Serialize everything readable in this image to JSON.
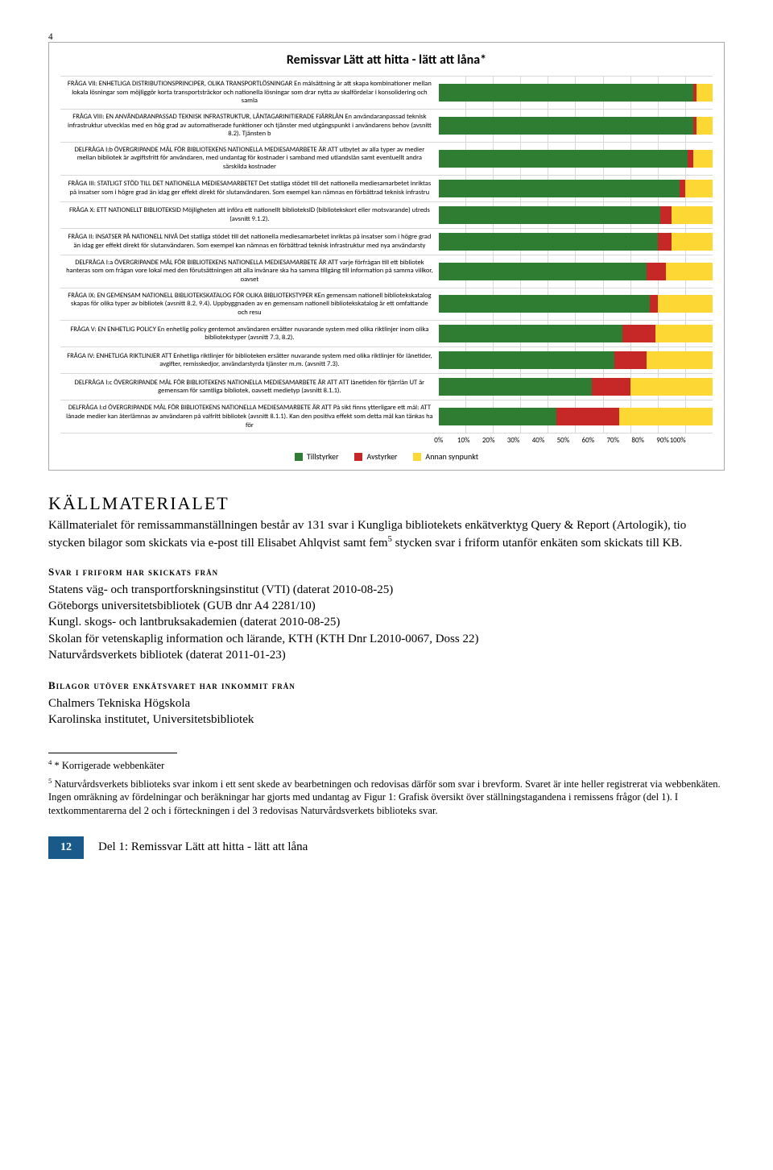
{
  "top_sup": "4",
  "chart": {
    "title": "Remissvar Lätt att hitta - lätt att låna*",
    "colors": {
      "tillstyrker": "#2e7d32",
      "avstyrker": "#c62828",
      "annan": "#fdd835"
    },
    "legend": [
      "Tillstyrker",
      "Avstyrker",
      "Annan synpunkt"
    ],
    "xticks": [
      "0%",
      "10%",
      "20%",
      "30%",
      "40%",
      "50%",
      "60%",
      "70%",
      "80%",
      "90%",
      "100%"
    ],
    "rows": [
      {
        "label": "FRÅGA VII: ENHETLIGA DISTRIBUTIONSPRINCIPER, OLIKA TRANSPORTLÖSNINGAR En målsättning är att skapa kombinationer mellan lokala lösningar som möjliggör korta transportsträckor och nationella lösningar som drar nytta av skalfördelar i konsolidering och samla",
        "segs": [
          93,
          1,
          6
        ]
      },
      {
        "label": "FRÅGA VIII: EN ANVÄNDARANPASSAD TEKNISK INFRASTRUKTUR, LÅNTAGARINITIERADE FJÄRRLÅN En användaranpassad teknisk infrastruktur utvecklas med en hög grad av automatiserade funktioner och tjänster med utgångspunkt i användarens behov (avsnitt 8.2). Tjänsten b",
        "segs": [
          93,
          1,
          6
        ]
      },
      {
        "label": "DELFRÅGA I:b ÖVERGRIPANDE MÅL FÖR BIBLIOTEKENS NATIONELLA MEDIESAMARBETE ÄR ATT utbytet av alla typer av medier mellan bibliotek är avgiftsfritt för användaren, med undantag för kostnader i samband med utlandslån samt eventuellt andra särskilda kostnader",
        "segs": [
          91,
          2,
          7
        ]
      },
      {
        "label": "FRÅGA III: STATLIGT STÖD TILL DET NATIONELLA MEDIESAMARBETET Det statliga stödet till det nationella mediesamarbetet inriktas på insatser som i högre grad än idag ger effekt direkt för slutanvändaren. Som exempel kan nämnas en förbättrad teknisk infrastru",
        "segs": [
          88,
          2,
          10
        ]
      },
      {
        "label": "FRÅGA X: ETT NATIONELLT BIBLIOTEKSID Möjligheten att införa ett nationellt biblioteksID (bibliotekskort eller motsvarande) utreds (avsnitt 9.1.2).",
        "segs": [
          81,
          4,
          15
        ]
      },
      {
        "label": "FRÅGA II: INSATSER PÅ NATIONELL NIVÅ Det statliga stödet till det nationella mediesamarbetet inriktas på insatser som i högre grad än idag ger effekt direkt för slutanvändaren. Som exempel kan nämnas en förbättrad teknisk infrastruktur med nya användarsty",
        "segs": [
          80,
          5,
          15
        ]
      },
      {
        "label": "DELFRÅGA I:a ÖVERGRIPANDE MÅL FÖR BIBLIOTEKENS NATIONELLA MEDIESAMARBETE ÄR  ATT varje förfrågan till ett bibliotek hanteras som om frågan vore lokal med den förutsättningen att alla invånare ska ha samma tillgång till information på samma villkor, oavset",
        "segs": [
          76,
          7,
          17
        ]
      },
      {
        "label": "FRÅGA IX: EN GEMENSAM NATIONELL BIBLIOTEKSKATALOG FÖR OLIKA BIBLIOTEKSTYPER KEn gemensam nationell bibliotekskatalog skapas för olika typer av bibliotek (avsnitt 8.2, 9.4). Uppbyggnaden av en gemensam nationell bibliotekskatalog är ett omfattande och resu",
        "segs": [
          77,
          3,
          20
        ]
      },
      {
        "label": "FRÅGA V: EN ENHETLIG POLICY En enhetlig policy gentemot användaren ersätter nuvarande system med olika riktlinjer inom olika bibliotekstyper (avsnitt 7.3, 8.2).",
        "segs": [
          67,
          12,
          21
        ]
      },
      {
        "label": "FRÅGA IV: ENHETLIGA RIKTLINJER ATT Enhetliga riktlinjer för biblioteken ersätter nuvarande system med olika riktlinjer för lånetider, avgifter, remisskedjor, användarstyrda tjänster m.m. (avsnitt 7.3).",
        "segs": [
          64,
          12,
          24
        ]
      },
      {
        "label": "DELFRÅGA I:c ÖVERGRIPANDE MÅL FÖR BIBLIOTEKENS NATIONELLA MEDIESAMARBETE ÄR ATT ATT lånetiden för fjärrlån UT är gemensam för samtliga bibliotek, oavsett medietyp (avsnitt 8.1.1).",
        "segs": [
          56,
          14,
          30
        ]
      },
      {
        "label": "DELFRÅGA I:d ÖVERGRIPANDE MÅL FÖR BIBLIOTEKENS NATIONELLA MEDIESAMARBETE ÄR ATT På sikt finns ytterligare ett mål: ATT lånade medier kan återlämnas av användaren på valfritt bibliotek (avsnitt 8.1.1). Kan den positiva effekt som detta mål kan tänkas ha för",
        "segs": [
          43,
          23,
          34
        ]
      }
    ]
  },
  "section_title": "KÄLLMATERIALET",
  "body_para": "Källmaterialet för remissammanställningen består av 131 svar i Kungliga bibliotekets enkätverktyg Query & Report (Artologik), tio stycken bilagor som skickats via e-post till Elisabet Ahlqvist samt fem",
  "body_para_sup": "5",
  "body_para_tail": " stycken svar i friform utanför enkäten som skickats till KB.",
  "sub1": "Svar i friform har skickats från",
  "list1": [
    "Statens väg- och transportforskningsinstitut (VTI) (daterat 2010-08-25)",
    "Göteborgs universitetsbibliotek (GUB dnr A4 2281/10)",
    "Kungl. skogs- och lantbruksakademien (daterat 2010-08-25)",
    "Skolan för vetenskaplig information och lärande, KTH (KTH Dnr L2010-0067, Doss 22)",
    "Naturvårdsverkets bibliotek (daterat 2011-01-23)"
  ],
  "sub2": "Bilagor utöver enkätsvaret har inkommit från",
  "list2": [
    "Chalmers Tekniska Högskola",
    "Karolinska institutet, Universitetsbibliotek"
  ],
  "fn4_num": "4",
  "fn4": " * Korrigerade webbenkäter",
  "fn5_num": "5",
  "fn5": " Naturvårdsverkets biblioteks svar inkom i ett sent skede av bearbetningen och redovisas därför som svar i brevform. Svaret är inte heller registrerat via webbenkäten. Ingen omräkning av fördelningar och beräkningar har gjorts med undantag av Figur 1: Grafisk översikt över ställningstagandena i remissens frågor (del 1). I textkommentarerna del 2 och i förteckningen i del 3 redovisas Naturvårdsverkets biblioteks svar.",
  "page_num": "12",
  "footer": "Del 1: Remissvar Lätt att hitta - lätt att låna"
}
